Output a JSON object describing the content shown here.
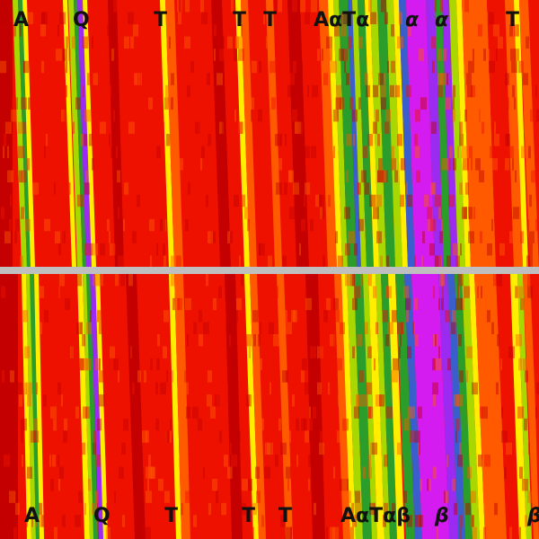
{
  "top_labels": [
    "A",
    "Q",
    "T",
    "T",
    "T",
    "AαTα",
    "α",
    "α",
    "T"
  ],
  "bottom_labels": [
    "A",
    "Q",
    "T",
    "T",
    "T",
    "AαTαβ",
    "β",
    "β"
  ],
  "colors": {
    "deep_red": "#c40000",
    "red": "#ee1100",
    "orange": "#ff5a00",
    "yellow": "#ffee00",
    "yellow_green": "#a8d800",
    "green": "#2a9d2a",
    "blue": "#3a5fcd",
    "purple": "#9b2bf0",
    "magenta": "#d41cf0",
    "divider": "#bfbfbf"
  }
}
